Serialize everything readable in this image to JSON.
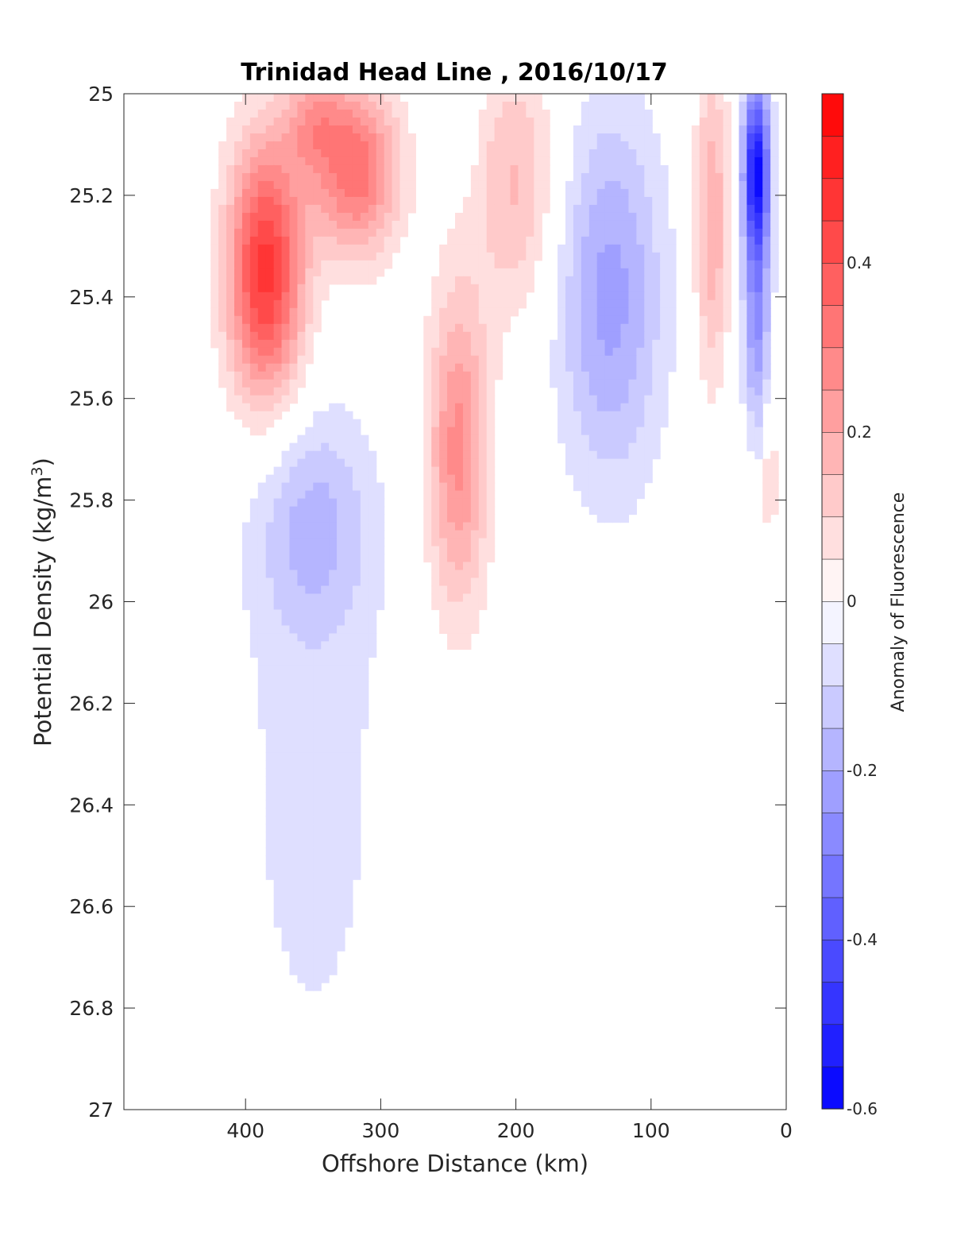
{
  "chart_data": {
    "type": "heatmap",
    "title": "Trinidad Head Line , 2016/10/17",
    "xlabel": "Offshore Distance (km)",
    "ylabel": "Potential Density (kg/m",
    "ylabel_superscript": "3",
    "ylabel_close": ")",
    "colorbar_label": "Anomaly of Fluorescence",
    "xlim": [
      490,
      0
    ],
    "ylim": [
      25,
      27
    ],
    "y_reversed": true,
    "x_reversed": true,
    "xticks": [
      400,
      300,
      200,
      100,
      0
    ],
    "yticks": [
      25,
      25.2,
      25.4,
      25.6,
      25.8,
      26,
      26.2,
      26.4,
      26.6,
      26.8,
      27
    ],
    "ytick_labels": [
      "25",
      "25.2",
      "25.4",
      "25.6",
      "25.8",
      "26",
      "26.2",
      "26.4",
      "26.6",
      "26.8",
      "27"
    ],
    "colorbar_range": [
      -0.6,
      0.6
    ],
    "colorbar_levels": 24,
    "colorbar_ticks": [
      -0.6,
      -0.4,
      -0.2,
      0,
      0.2,
      0.4
    ],
    "colorbar_tick_labels": [
      "-0.6",
      "-0.4",
      "-0.2",
      "0",
      "0.2",
      "0.4"
    ],
    "colormap": {
      "negative": "#0000ff",
      "zero": "#ffffff",
      "positive": "#ff0000"
    },
    "anomaly_centers": [
      {
        "x": 385,
        "y": 25.35,
        "value": 0.48,
        "sx": 20,
        "sy": 0.18
      },
      {
        "x": 318,
        "y": 25.15,
        "value": 0.34,
        "sx": 22,
        "sy": 0.12
      },
      {
        "x": 350,
        "y": 25.05,
        "value": 0.18,
        "sx": 15,
        "sy": 0.08
      },
      {
        "x": 243,
        "y": 25.7,
        "value": 0.27,
        "sx": 16,
        "sy": 0.22
      },
      {
        "x": 200,
        "y": 25.18,
        "value": 0.16,
        "sx": 22,
        "sy": 0.18
      },
      {
        "x": 238,
        "y": 25.05,
        "value": -0.08,
        "sx": 7,
        "sy": 0.07
      },
      {
        "x": 130,
        "y": 25.4,
        "value": -0.22,
        "sx": 28,
        "sy": 0.26
      },
      {
        "x": 55,
        "y": 25.25,
        "value": 0.2,
        "sx": 9,
        "sy": 0.22
      },
      {
        "x": 22,
        "y": 25.15,
        "value": -0.55,
        "sx": 7,
        "sy": 0.12
      },
      {
        "x": 22,
        "y": 25.45,
        "value": -0.25,
        "sx": 7,
        "sy": 0.15
      },
      {
        "x": 350,
        "y": 25.85,
        "value": -0.14,
        "sx": 30,
        "sy": 0.15
      },
      {
        "x": 350,
        "y": 26.35,
        "value": -0.07,
        "sx": 45,
        "sy": 0.5
      },
      {
        "x": 12,
        "y": 25.75,
        "value": 0.12,
        "sx": 3,
        "sy": 0.1
      }
    ]
  }
}
